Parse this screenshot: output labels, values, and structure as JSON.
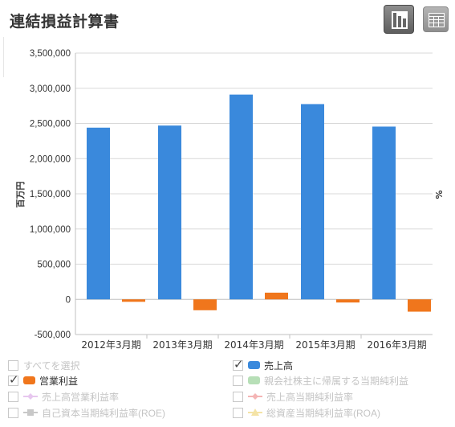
{
  "header": {
    "title": "連結損益計算書"
  },
  "toolbar": {
    "chart_view_icon": "bar-chart-icon",
    "table_view_icon": "table-grid-icon"
  },
  "colors": {
    "sales": "#3a89dc",
    "operating": "#f0761c",
    "grid": "#d8d8d8"
  },
  "chart_data": {
    "type": "bar",
    "ylabel": "百万円",
    "y2label": "%",
    "ylim": [
      -500000,
      3500000
    ],
    "yticks": [
      "3,500,000",
      "3,000,000",
      "2,500,000",
      "2,000,000",
      "1,500,000",
      "1,000,000",
      "500,000",
      "0",
      "-500,000"
    ],
    "ytick_values": [
      3500000,
      3000000,
      2500000,
      2000000,
      1500000,
      1000000,
      500000,
      0,
      -500000
    ],
    "categories": [
      "2012年3月期",
      "2013年3月期",
      "2014年3月期",
      "2015年3月期",
      "2016年3月期"
    ],
    "series": [
      {
        "name": "売上高",
        "color": "#3a89dc",
        "values": [
          2440000,
          2470000,
          2910000,
          2775000,
          2455000
        ]
      },
      {
        "name": "営業利益",
        "color": "#f0761c",
        "values": [
          -35000,
          -155000,
          95000,
          -45000,
          -175000
        ]
      }
    ],
    "grid": true
  },
  "legend": {
    "items": [
      {
        "label": "すべてを選択",
        "checked": false,
        "active": false,
        "symbol": "none"
      },
      {
        "label": "売上高",
        "checked": true,
        "active": true,
        "symbol": "bar",
        "color": "#3a89dc"
      },
      {
        "label": "営業利益",
        "checked": true,
        "active": true,
        "symbol": "bar",
        "color": "#f0761c"
      },
      {
        "label": "親会社株主に帰属する当期純利益",
        "checked": false,
        "active": false,
        "symbol": "bar",
        "color": "#b7dfb7"
      },
      {
        "label": "売上高営業利益率",
        "checked": false,
        "active": false,
        "symbol": "line-diamond",
        "color": "#e7c7ef"
      },
      {
        "label": "売上高当期純利益率",
        "checked": false,
        "active": false,
        "symbol": "line-diamond",
        "color": "#f4b5b5"
      },
      {
        "label": "自己資本当期純利益率(ROE)",
        "checked": false,
        "active": false,
        "symbol": "line-square",
        "color": "#c8c8c8"
      },
      {
        "label": "総資産当期純利益率(ROA)",
        "checked": false,
        "active": false,
        "symbol": "line-triangle",
        "color": "#f4e3a6"
      }
    ]
  }
}
